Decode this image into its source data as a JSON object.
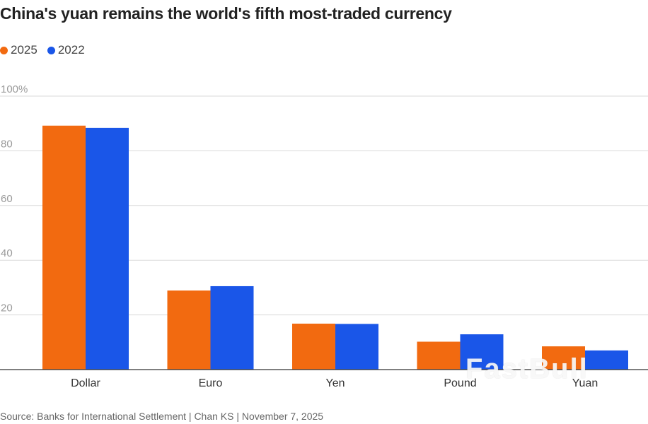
{
  "title": "China's yuan remains the world's fifth most-traded currency",
  "source": "Source: Banks for International Settlement | Chan KS | November 7, 2025",
  "watermark": "FastBull",
  "chart_data": {
    "type": "bar",
    "title": "China's yuan remains the world's fifth most-traded currency",
    "xlabel": "",
    "ylabel": "",
    "ylim": [
      0,
      100
    ],
    "y_ticks": [
      {
        "value": 20,
        "label": "20"
      },
      {
        "value": 40,
        "label": "40"
      },
      {
        "value": 60,
        "label": "60"
      },
      {
        "value": 80,
        "label": "80"
      },
      {
        "value": 100,
        "label": "100%"
      }
    ],
    "categories": [
      "Dollar",
      "Euro",
      "Yen",
      "Pound",
      "Yuan"
    ],
    "series": [
      {
        "name": "2025",
        "color": "#f26a10",
        "values": [
          89.2,
          28.9,
          16.8,
          10.2,
          8.5
        ]
      },
      {
        "name": "2022",
        "color": "#1a56e8",
        "values": [
          88.4,
          30.5,
          16.7,
          12.9,
          7.0
        ]
      }
    ],
    "legend_position": "top-left",
    "grid": true
  }
}
